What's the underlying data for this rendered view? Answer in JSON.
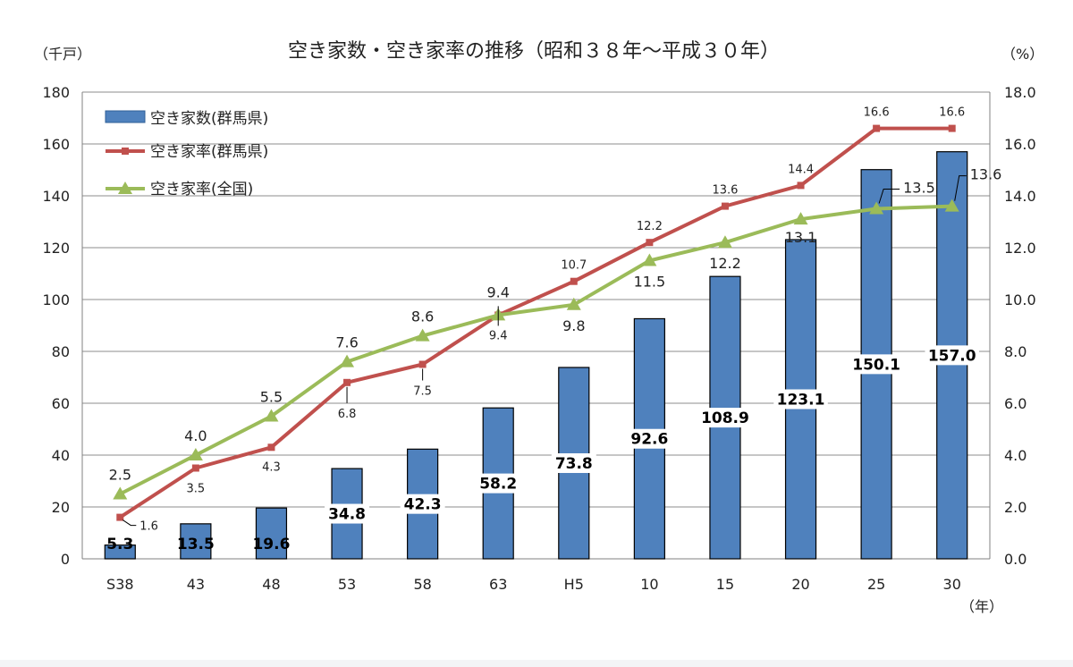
{
  "chart_data": {
    "type": "bar",
    "title": "空き家数・空き家率の推移（昭和３８年～平成３０年）",
    "left_axis_unit": "（千戸）",
    "right_axis_unit": "（%）",
    "x_axis_unit": "（年）",
    "categories": [
      "S38",
      "43",
      "48",
      "53",
      "58",
      "63",
      "H5",
      "10",
      "15",
      "20",
      "25",
      "30"
    ],
    "y_left": {
      "min": 0,
      "max": 180,
      "ticks": [
        0,
        20,
        40,
        60,
        80,
        100,
        120,
        140,
        160,
        180
      ]
    },
    "y_right": {
      "min": 0,
      "max": 18,
      "ticks": [
        "0.0",
        "2.0",
        "4.0",
        "6.0",
        "8.0",
        "10.0",
        "12.0",
        "14.0",
        "16.0",
        "18.0"
      ]
    },
    "grid": true,
    "legend_position": "top-left",
    "series": [
      {
        "name": "空き家数(群馬県)",
        "kind": "bar",
        "axis": "left",
        "color": "#4f81bd",
        "values": [
          5.3,
          13.5,
          19.6,
          34.8,
          42.3,
          58.2,
          73.8,
          92.6,
          108.9,
          123.1,
          150.1,
          157.0
        ],
        "labels": [
          "5.3",
          "13.5",
          "19.6",
          "34.8",
          "42.3",
          "58.2",
          "73.8",
          "92.6",
          "108.9",
          "123.1",
          "150.1",
          "157.0"
        ]
      },
      {
        "name": "空き家率(群馬県)",
        "kind": "line",
        "axis": "right",
        "color": "#c0504d",
        "values": [
          1.6,
          3.5,
          4.3,
          6.8,
          7.5,
          9.4,
          10.7,
          12.2,
          13.6,
          14.4,
          16.6,
          16.6
        ],
        "labels": [
          "1.6",
          "3.5",
          "4.3",
          "6.8",
          "7.5",
          "9.4",
          "10.7",
          "12.2",
          "13.6",
          "14.4",
          "16.6",
          "16.6"
        ]
      },
      {
        "name": "空き家率(全国)",
        "kind": "line",
        "axis": "right",
        "color": "#9bbb59",
        "values": [
          2.5,
          4.0,
          5.5,
          7.6,
          8.6,
          9.4,
          9.8,
          11.5,
          12.2,
          13.1,
          13.5,
          13.6
        ],
        "labels": [
          "2.5",
          "4.0",
          "5.5",
          "7.6",
          "8.6",
          "9.4",
          "9.8",
          "11.5",
          "12.2",
          "13.1",
          "13.5",
          "13.6"
        ]
      }
    ]
  }
}
